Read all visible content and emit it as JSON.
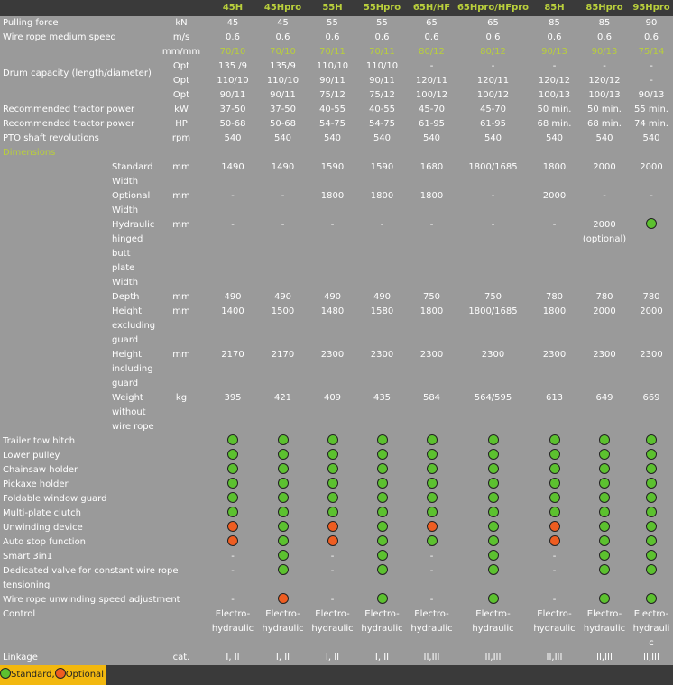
{
  "columns": [
    "45H",
    "45Hpro",
    "55H",
    "55Hpro",
    "65H/HF",
    "65Hpro/HFpro",
    "85H",
    "85Hpro",
    "95Hpro"
  ],
  "rows": [
    {
      "label": "Pulling force",
      "unit": "kN",
      "values": [
        "45",
        "45",
        "55",
        "55",
        "65",
        "65",
        "85",
        "85",
        "90"
      ]
    },
    {
      "label": "Wire rope medium speed",
      "unit": "m/s",
      "values": [
        "0.6",
        "0.6",
        "0.6",
        "0.6",
        "0.6",
        "0.6",
        "0.6",
        "0.6",
        "0.6"
      ]
    },
    {
      "label": "",
      "unit": "mm/mm",
      "accent": true,
      "values": [
        "70/10",
        "70/10",
        "70/11",
        "70/11",
        "80/12",
        "80/12",
        "90/13",
        "90/13",
        "75/14"
      ]
    },
    {
      "label": "Drum capacity (length/diameter)",
      "unit": "Opt",
      "values": [
        "135 /9",
        "135/9",
        "110/10",
        "110/10",
        "-",
        "-",
        "-",
        "-",
        "-"
      ]
    },
    {
      "label": "",
      "unit": "Opt",
      "values": [
        "110/10",
        "110/10",
        "90/11",
        "90/11",
        "120/11",
        "120/11",
        "120/12",
        "120/12",
        "-"
      ]
    },
    {
      "label": "",
      "unit": "Opt",
      "values": [
        "90/11",
        "90/11",
        "75/12",
        "75/12",
        "100/12",
        "100/12",
        "100/13",
        "100/13",
        "90/13"
      ]
    },
    {
      "label": "Recommended tractor power",
      "unit": "kW",
      "values": [
        "37-50",
        "37-50",
        "40-55",
        "40-55",
        "45-70",
        "45-70",
        "50 min.",
        "50 min.",
        "55 min."
      ]
    },
    {
      "label": "Recommended tractor power",
      "unit": "HP",
      "values": [
        "50-68",
        "50-68",
        "54-75",
        "54-75",
        "61-95",
        "61-95",
        "68 min.",
        "68 min.",
        "74 min."
      ]
    },
    {
      "label": "PTO shaft revolutions",
      "unit": "rpm",
      "values": [
        "540",
        "540",
        "540",
        "540",
        "540",
        "540",
        "540",
        "540",
        "540"
      ]
    }
  ],
  "dimensions_label": "Dimensions",
  "dimension_rows": [
    {
      "label": "Standard Width",
      "unit": "mm",
      "values": [
        "1490",
        "1490",
        "1590",
        "1590",
        "1680",
        "1800/1685",
        "1800",
        "2000",
        "2000"
      ]
    },
    {
      "label": "Optional Width",
      "unit": "mm",
      "values": [
        "-",
        "-",
        "1800",
        "1800",
        "1800",
        "-",
        "2000",
        "-",
        "-"
      ]
    },
    {
      "label": "Hydraulic hinged butt plate Width",
      "unit": "mm",
      "values": [
        "-",
        "-",
        "-",
        "-",
        "-",
        "-",
        "-",
        "2000 (optional)",
        "std"
      ]
    },
    {
      "label": "Depth",
      "unit": "mm",
      "values": [
        "490",
        "490",
        "490",
        "490",
        "750",
        "750",
        "780",
        "780",
        "780"
      ]
    },
    {
      "label": "Height excluding guard",
      "unit": "mm",
      "values": [
        "1400",
        "1500",
        "1480",
        "1580",
        "1800",
        "1800/1685",
        "1800",
        "2000",
        "2000"
      ]
    },
    {
      "label": "Height including guard",
      "unit": "mm",
      "values": [
        "2170",
        "2170",
        "2300",
        "2300",
        "2300",
        "2300",
        "2300",
        "2300",
        "2300"
      ]
    },
    {
      "label": "Weight without wire rope",
      "unit": "kg",
      "values": [
        "395",
        "421",
        "409",
        "435",
        "584",
        "564/595",
        "613",
        "649",
        "669"
      ]
    }
  ],
  "feature_rows": [
    {
      "label": "Trailer tow hitch",
      "values": [
        "std",
        "std",
        "std",
        "std",
        "std",
        "std",
        "std",
        "std",
        "std"
      ]
    },
    {
      "label": "Lower pulley",
      "values": [
        "std",
        "std",
        "std",
        "std",
        "std",
        "std",
        "std",
        "std",
        "std"
      ]
    },
    {
      "label": "Chainsaw holder",
      "values": [
        "std",
        "std",
        "std",
        "std",
        "std",
        "std",
        "std",
        "std",
        "std"
      ]
    },
    {
      "label": "Pickaxe holder",
      "values": [
        "std",
        "std",
        "std",
        "std",
        "std",
        "std",
        "std",
        "std",
        "std"
      ]
    },
    {
      "label": "Foldable window guard",
      "values": [
        "std",
        "std",
        "std",
        "std",
        "std",
        "std",
        "std",
        "std",
        "std"
      ]
    },
    {
      "label": "Multi-plate clutch",
      "values": [
        "std",
        "std",
        "std",
        "std",
        "std",
        "std",
        "std",
        "std",
        "std"
      ]
    },
    {
      "label": "Unwinding device",
      "values": [
        "opt",
        "std",
        "opt",
        "std",
        "opt",
        "std",
        "opt",
        "std",
        "std"
      ]
    },
    {
      "label": "Auto stop function",
      "values": [
        "opt",
        "std",
        "opt",
        "std",
        "std",
        "std",
        "opt",
        "std",
        "std"
      ]
    },
    {
      "label": "Smart 3in1",
      "values": [
        "-",
        "std",
        "-",
        "std",
        "-",
        "std",
        "-",
        "std",
        "std"
      ]
    },
    {
      "label": "Dedicated valve for constant wire rope tensioning",
      "values": [
        "-",
        "std",
        "-",
        "std",
        "-",
        "std",
        "-",
        "std",
        "std"
      ]
    },
    {
      "label": "Wire rope unwinding speed adjustment",
      "values": [
        "-",
        "opt",
        "-",
        "std",
        "-",
        "std",
        "-",
        "std",
        "std"
      ]
    }
  ],
  "control": {
    "label": "Control",
    "values": [
      "Electro-hydraulic",
      "Electro-hydraulic",
      "Electro-hydraulic",
      "Electro-hydraulic",
      "Electro-hydraulic",
      "Electro-hydraulic",
      "Electro-hydraulic",
      "Electro-hydraulic",
      "Electro-hydraulic"
    ]
  },
  "linkage": {
    "label": "Linkage",
    "unit": "cat.",
    "values": [
      "I, II",
      "I, II",
      "I, II",
      "I, II",
      "II,III",
      "II,III",
      "II,III",
      "II,III",
      "II,III"
    ]
  },
  "legend": {
    "standard": "Standard",
    "separator": ",",
    "optional": "Optional"
  },
  "colors": {
    "standard": "#5cc12f",
    "optional": "#ee5d21",
    "accent": "#b9cf3c",
    "legend_bg": "#f2b80f"
  }
}
